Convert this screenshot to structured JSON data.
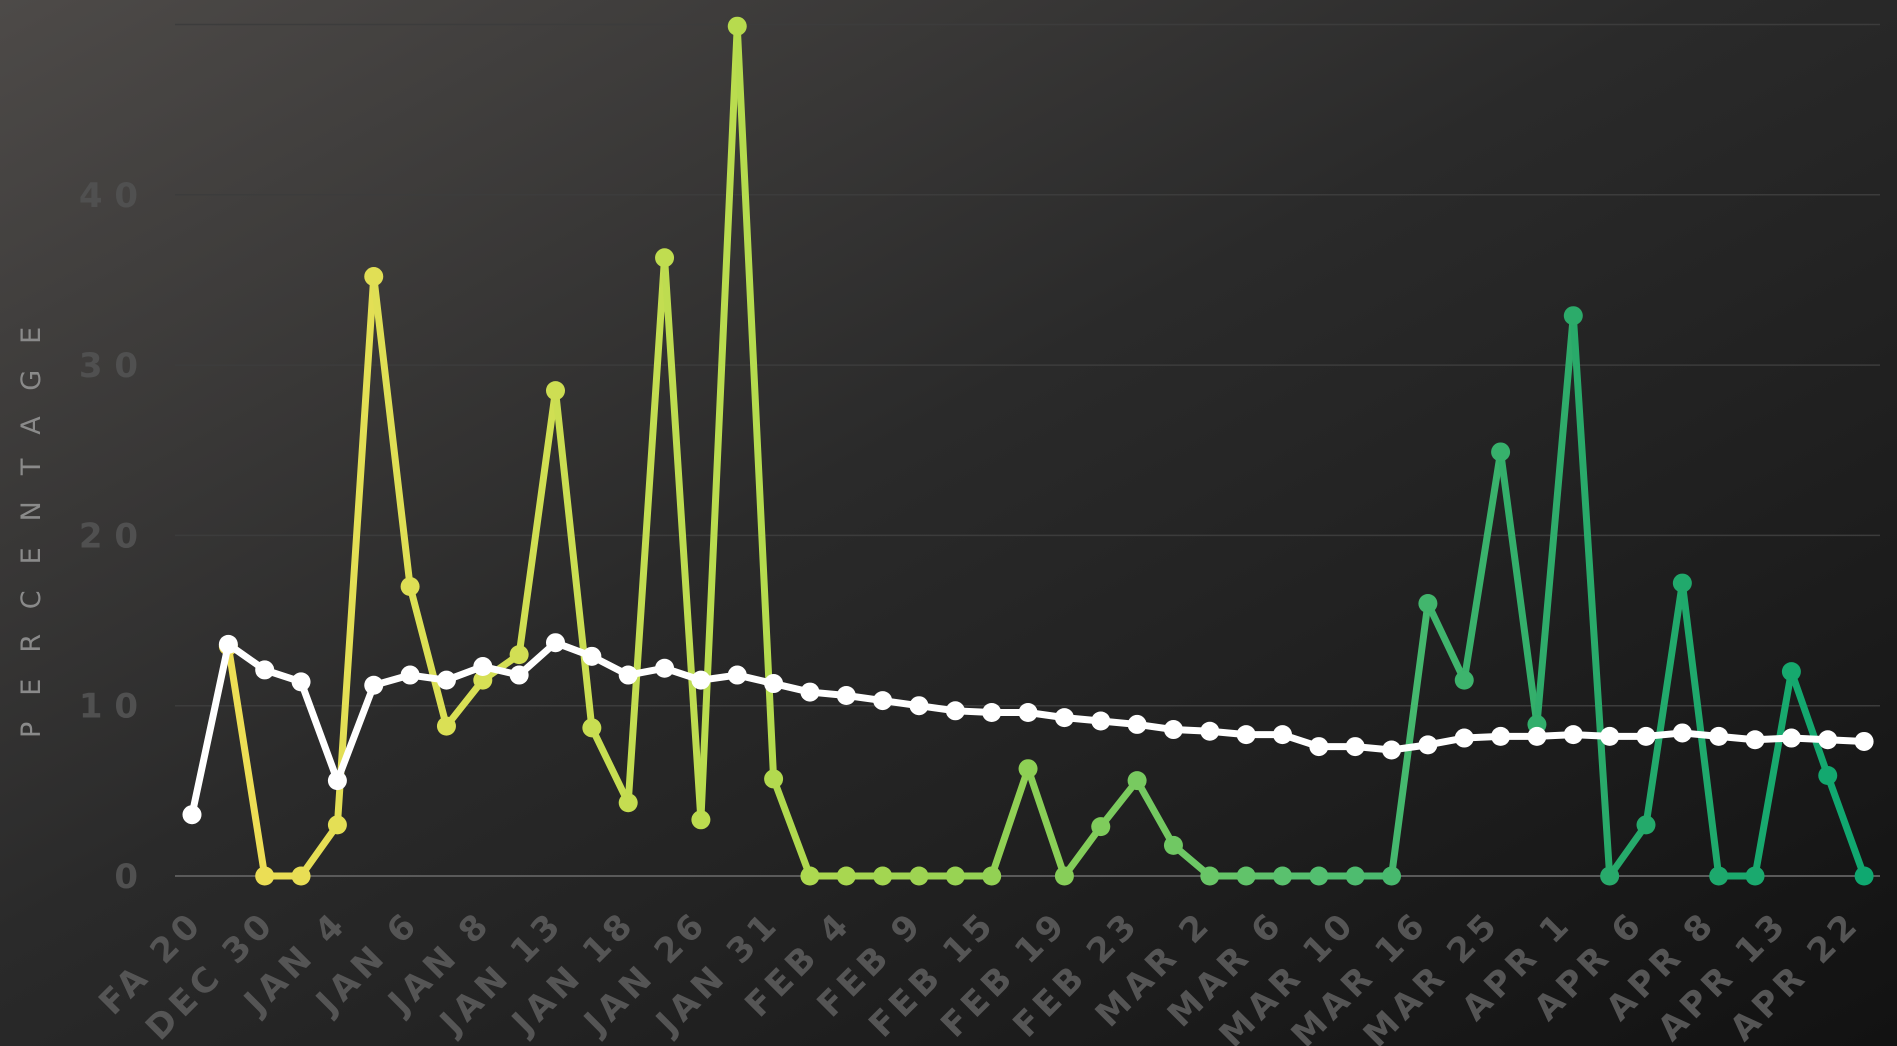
{
  "chart_data": {
    "type": "line",
    "ylabel": "PERCENTAGE",
    "xlabel": "",
    "title": "",
    "ylim": [
      0,
      50
    ],
    "yticks": [
      0,
      10,
      20,
      30,
      40
    ],
    "grid": true,
    "x_tick_labels": [
      "FA 20",
      "DEC 30",
      "JAN 4",
      "JAN 6",
      "JAN 8",
      "JAN 13",
      "JAN 18",
      "JAN 26",
      "JAN 31",
      "FEB 4",
      "FEB 9",
      "FEB 15",
      "FEB 19",
      "FEB 23",
      "MAR 2",
      "MAR 6",
      "MAR 10",
      "MAR 16",
      "MAR 25",
      "APR 1",
      "APR 6",
      "APR 8",
      "APR 13",
      "APR 22"
    ],
    "series": [
      {
        "style": "colored-gradient",
        "colors": [
          "#f2dd55",
          "#d8e055",
          "#b6db4e",
          "#8ed055",
          "#55c070",
          "#2aaa6a",
          "#0fa870"
        ],
        "values": [
          null,
          13.5,
          0,
          0,
          3,
          35.2,
          17,
          8.8,
          11.5,
          13,
          28.5,
          8.7,
          4.3,
          36.3,
          3.3,
          49.9,
          5.7,
          0,
          0,
          0,
          0,
          0,
          0,
          6.3,
          0,
          2.9,
          5.6,
          1.8,
          0,
          0,
          0,
          0,
          0,
          0,
          16,
          11.5,
          24.9,
          8.9,
          32.9,
          0,
          3,
          17.2,
          0,
          0,
          12,
          5.9,
          0
        ]
      },
      {
        "style": "white",
        "color": "#ffffff",
        "values": [
          3.6,
          13.6,
          12.1,
          11.4,
          5.6,
          11.2,
          11.8,
          11.5,
          12.3,
          11.8,
          13.7,
          12.9,
          11.8,
          12.2,
          11.5,
          11.8,
          11.3,
          10.8,
          10.6,
          10.3,
          10,
          9.7,
          9.6,
          9.6,
          9.3,
          9.1,
          8.9,
          8.6,
          8.5,
          8.3,
          8.3,
          7.6,
          7.6,
          7.4,
          7.7,
          8.1,
          8.2,
          8.2,
          8.3,
          8.2,
          8.2,
          8.4,
          8.2,
          8,
          8.1,
          8,
          7.9
        ]
      }
    ]
  }
}
